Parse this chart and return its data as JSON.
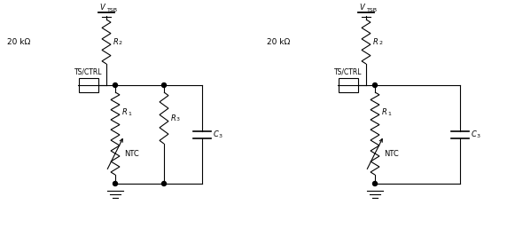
{
  "bg_color": "#ffffff",
  "line_color": "#000000",
  "circuit1": {
    "vtsb_label": "V",
    "vtsb_sub": "TSB",
    "r2_label": "R",
    "r2_sub": "2",
    "kohm_label": "20 kΩ",
    "ts_label": "TS/CTRL",
    "r1_label": "R",
    "r1_sub": "1",
    "r3_label": "R",
    "r3_sub": "3",
    "ntc_label": "NTC",
    "c3_label": "C",
    "c3_sub": "3"
  },
  "circuit2": {
    "vtsb_label": "V",
    "vtsb_sub": "TSB",
    "r2_label": "R",
    "r2_sub": "2",
    "kohm_label": "20 kΩ",
    "ts_label": "TS/CTRL",
    "r1_label": "R",
    "r1_sub": "1",
    "ntc_label": "NTC",
    "c3_label": "C",
    "c3_sub": "3"
  }
}
